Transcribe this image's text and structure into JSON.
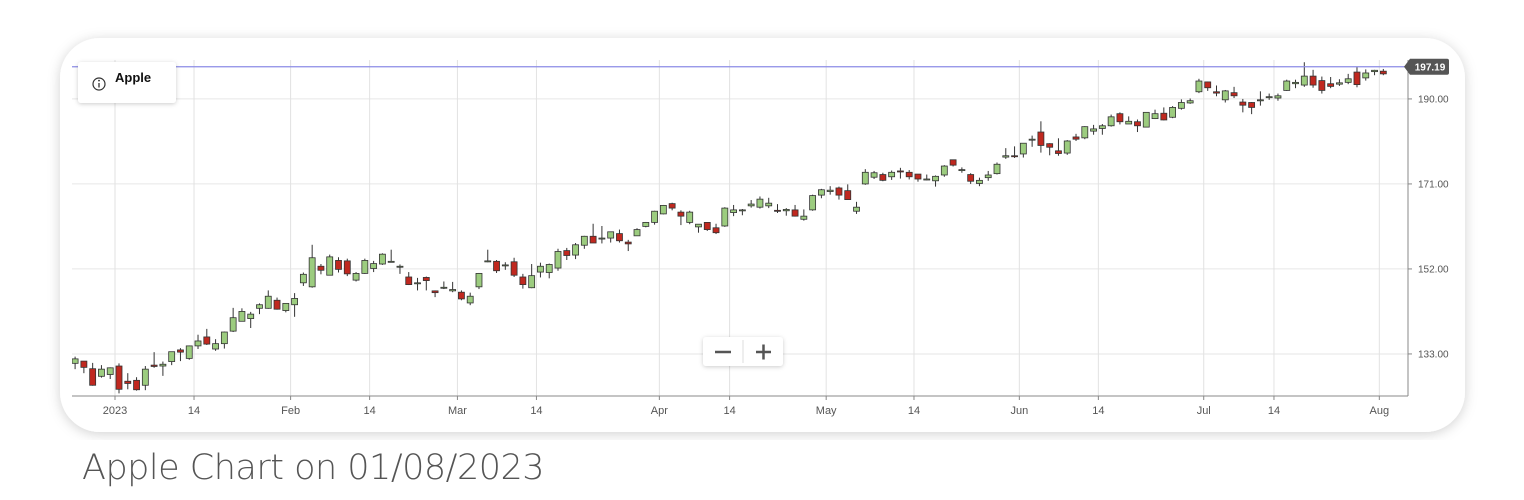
{
  "caption": "Apple Chart on 01/08/2023",
  "chart_data": {
    "type": "candlestick",
    "title": "Apple",
    "up_color": "#9ccc7f",
    "down_color": "#c0281f",
    "outline_color": "#333333",
    "last_price": 197.19,
    "last_price_color": "#8c8ce6",
    "grid": true,
    "ylim": [
      123.6,
      198.7
    ],
    "yticks": [
      {
        "value": 133,
        "label": "133.00"
      },
      {
        "value": 152,
        "label": "152.00"
      },
      {
        "value": 171,
        "label": "171.00"
      },
      {
        "value": 190,
        "label": "190.00"
      }
    ],
    "xticks": [
      {
        "value": "2023-01-01",
        "label": "2023"
      },
      {
        "value": "2023-01-14",
        "label": "14"
      },
      {
        "value": "2023-02-01",
        "label": "Feb"
      },
      {
        "value": "2023-02-14",
        "label": "14"
      },
      {
        "value": "2023-03-01",
        "label": "Mar"
      },
      {
        "value": "2023-03-14",
        "label": "14"
      },
      {
        "value": "2023-04-01",
        "label": "Apr"
      },
      {
        "value": "2023-04-14",
        "label": "14"
      },
      {
        "value": "2023-05-01",
        "label": "May"
      },
      {
        "value": "2023-05-14",
        "label": "14"
      },
      {
        "value": "2023-06-01",
        "label": "Jun"
      },
      {
        "value": "2023-06-14",
        "label": "14"
      },
      {
        "value": "2023-07-01",
        "label": "Jul"
      },
      {
        "value": "2023-07-14",
        "label": "14"
      },
      {
        "value": "2023-08-01",
        "label": "Aug"
      }
    ],
    "x": [
      "2022-12-22",
      "2022-12-23",
      "2022-12-27",
      "2022-12-28",
      "2022-12-29",
      "2022-12-30",
      "2023-01-03",
      "2023-01-04",
      "2023-01-05",
      "2023-01-06",
      "2023-01-09",
      "2023-01-10",
      "2023-01-11",
      "2023-01-12",
      "2023-01-13",
      "2023-01-17",
      "2023-01-18",
      "2023-01-19",
      "2023-01-20",
      "2023-01-23",
      "2023-01-24",
      "2023-01-25",
      "2023-01-26",
      "2023-01-27",
      "2023-01-30",
      "2023-01-31",
      "2023-02-01",
      "2023-02-02",
      "2023-02-03",
      "2023-02-06",
      "2023-02-07",
      "2023-02-08",
      "2023-02-09",
      "2023-02-10",
      "2023-02-13",
      "2023-02-14",
      "2023-02-15",
      "2023-02-16",
      "2023-02-17",
      "2023-02-21",
      "2023-02-22",
      "2023-02-23",
      "2023-02-24",
      "2023-02-27",
      "2023-02-28",
      "2023-03-01",
      "2023-03-02",
      "2023-03-03",
      "2023-03-06",
      "2023-03-07",
      "2023-03-08",
      "2023-03-09",
      "2023-03-10",
      "2023-03-13",
      "2023-03-14",
      "2023-03-15",
      "2023-03-16",
      "2023-03-17",
      "2023-03-20",
      "2023-03-21",
      "2023-03-22",
      "2023-03-23",
      "2023-03-24",
      "2023-03-27",
      "2023-03-28",
      "2023-03-29",
      "2023-03-30",
      "2023-03-31",
      "2023-04-03",
      "2023-04-04",
      "2023-04-05",
      "2023-04-06",
      "2023-04-10",
      "2023-04-11",
      "2023-04-12",
      "2023-04-13",
      "2023-04-14",
      "2023-04-17",
      "2023-04-18",
      "2023-04-19",
      "2023-04-20",
      "2023-04-21",
      "2023-04-24",
      "2023-04-25",
      "2023-04-26",
      "2023-04-27",
      "2023-04-28",
      "2023-05-01",
      "2023-05-02",
      "2023-05-03",
      "2023-05-04",
      "2023-05-05",
      "2023-05-08",
      "2023-05-09",
      "2023-05-10",
      "2023-05-11",
      "2023-05-12",
      "2023-05-15",
      "2023-05-16",
      "2023-05-17",
      "2023-05-18",
      "2023-05-19",
      "2023-05-22",
      "2023-05-23",
      "2023-05-24",
      "2023-05-25",
      "2023-05-26",
      "2023-05-30",
      "2023-05-31",
      "2023-06-01",
      "2023-06-02",
      "2023-06-05",
      "2023-06-06",
      "2023-06-07",
      "2023-06-08",
      "2023-06-09",
      "2023-06-12",
      "2023-06-13",
      "2023-06-14",
      "2023-06-15",
      "2023-06-16",
      "2023-06-20",
      "2023-06-21",
      "2023-06-22",
      "2023-06-23",
      "2023-06-26",
      "2023-06-27",
      "2023-06-28",
      "2023-06-29",
      "2023-06-30",
      "2023-07-03",
      "2023-07-05",
      "2023-07-06",
      "2023-07-07",
      "2023-07-10",
      "2023-07-11",
      "2023-07-12",
      "2023-07-13",
      "2023-07-14",
      "2023-07-17",
      "2023-07-18",
      "2023-07-19",
      "2023-07-20",
      "2023-07-21",
      "2023-07-24",
      "2023-07-25",
      "2023-07-26",
      "2023-07-27",
      "2023-07-28",
      "2023-07-31",
      "2023-08-01"
    ],
    "ohlc": [
      [
        134.4,
        134.6,
        130.0,
        132.2
      ],
      [
        130.9,
        132.4,
        129.6,
        131.9
      ],
      [
        131.4,
        131.4,
        128.7,
        130.0
      ],
      [
        129.7,
        131.0,
        125.9,
        126.0
      ],
      [
        128.0,
        130.5,
        127.7,
        129.6
      ],
      [
        128.4,
        130.0,
        127.4,
        129.9
      ],
      [
        130.3,
        130.9,
        124.2,
        125.1
      ],
      [
        126.9,
        128.7,
        125.1,
        126.4
      ],
      [
        127.1,
        127.8,
        124.8,
        125.0
      ],
      [
        126.0,
        130.3,
        124.9,
        129.6
      ],
      [
        130.5,
        133.4,
        129.9,
        130.2
      ],
      [
        130.3,
        131.3,
        128.1,
        130.7
      ],
      [
        131.3,
        133.5,
        130.5,
        133.5
      ],
      [
        133.9,
        134.3,
        131.4,
        133.4
      ],
      [
        132.0,
        134.9,
        131.7,
        134.8
      ],
      [
        134.8,
        137.3,
        134.1,
        135.9
      ],
      [
        136.8,
        138.6,
        135.0,
        135.2
      ],
      [
        134.1,
        136.3,
        133.7,
        135.3
      ],
      [
        135.3,
        138.0,
        134.2,
        137.9
      ],
      [
        138.1,
        143.3,
        137.9,
        141.1
      ],
      [
        140.3,
        143.2,
        140.3,
        142.5
      ],
      [
        140.9,
        142.4,
        138.8,
        141.9
      ],
      [
        143.2,
        144.3,
        141.9,
        144.0
      ],
      [
        143.2,
        147.2,
        143.1,
        145.9
      ],
      [
        145.0,
        145.6,
        142.9,
        143.0
      ],
      [
        142.7,
        144.3,
        142.3,
        144.3
      ],
      [
        144.0,
        146.6,
        141.3,
        145.4
      ],
      [
        148.9,
        151.2,
        148.2,
        150.8
      ],
      [
        148.0,
        157.4,
        147.8,
        154.5
      ],
      [
        152.6,
        153.1,
        150.8,
        151.7
      ],
      [
        150.6,
        155.2,
        150.6,
        154.7
      ],
      [
        153.9,
        154.6,
        151.2,
        151.9
      ],
      [
        153.8,
        154.3,
        150.4,
        150.9
      ],
      [
        149.5,
        151.3,
        149.2,
        151.0
      ],
      [
        151.0,
        154.3,
        150.9,
        153.9
      ],
      [
        152.1,
        153.8,
        151.3,
        153.2
      ],
      [
        153.1,
        155.5,
        152.9,
        155.3
      ],
      [
        153.5,
        156.3,
        153.5,
        153.7
      ],
      [
        152.4,
        153.0,
        150.9,
        152.6
      ],
      [
        150.2,
        151.3,
        148.4,
        148.5
      ],
      [
        148.9,
        150.0,
        147.2,
        148.9
      ],
      [
        150.1,
        150.3,
        147.2,
        149.4
      ],
      [
        147.1,
        147.2,
        145.7,
        146.7
      ],
      [
        147.7,
        149.2,
        147.5,
        147.9
      ],
      [
        147.1,
        149.1,
        146.8,
        147.4
      ],
      [
        146.8,
        147.2,
        145.0,
        145.3
      ],
      [
        144.4,
        146.7,
        143.9,
        145.9
      ],
      [
        148.0,
        151.1,
        147.5,
        151.0
      ],
      [
        153.8,
        156.3,
        153.5,
        153.8
      ],
      [
        153.7,
        154.0,
        151.1,
        151.6
      ],
      [
        152.8,
        153.5,
        151.8,
        152.9
      ],
      [
        153.6,
        154.5,
        150.2,
        150.6
      ],
      [
        150.2,
        150.9,
        147.6,
        148.5
      ],
      [
        147.8,
        153.1,
        147.7,
        150.5
      ],
      [
        151.3,
        153.4,
        150.1,
        152.6
      ],
      [
        151.2,
        153.2,
        149.9,
        153.0
      ],
      [
        152.2,
        156.5,
        151.6,
        155.9
      ],
      [
        156.1,
        156.7,
        154.0,
        155.0
      ],
      [
        155.1,
        157.8,
        154.2,
        157.4
      ],
      [
        157.3,
        159.4,
        156.5,
        159.3
      ],
      [
        159.3,
        162.1,
        157.8,
        157.8
      ],
      [
        158.8,
        161.6,
        157.7,
        158.9
      ],
      [
        158.9,
        160.3,
        157.9,
        160.3
      ],
      [
        159.9,
        160.8,
        157.9,
        158.3
      ],
      [
        158.0,
        158.5,
        156.0,
        157.6
      ],
      [
        159.4,
        161.1,
        159.4,
        160.8
      ],
      [
        161.5,
        162.5,
        161.3,
        162.4
      ],
      [
        162.4,
        165.0,
        161.9,
        164.9
      ],
      [
        164.3,
        166.3,
        164.2,
        166.2
      ],
      [
        166.6,
        166.8,
        165.1,
        165.6
      ],
      [
        164.7,
        165.1,
        161.8,
        163.8
      ],
      [
        162.4,
        165.0,
        162.0,
        164.7
      ],
      [
        161.4,
        162.0,
        160.1,
        162.0
      ],
      [
        162.4,
        162.4,
        160.5,
        160.8
      ],
      [
        161.2,
        162.1,
        159.8,
        160.1
      ],
      [
        161.6,
        165.8,
        161.4,
        165.6
      ],
      [
        164.6,
        166.3,
        163.8,
        165.2
      ],
      [
        165.1,
        165.4,
        164.0,
        165.2
      ],
      [
        166.1,
        167.4,
        165.7,
        166.5
      ],
      [
        165.8,
        168.2,
        165.5,
        167.6
      ],
      [
        166.1,
        167.9,
        165.6,
        166.7
      ],
      [
        165.1,
        166.5,
        164.5,
        165.0
      ],
      [
        165.0,
        165.6,
        163.9,
        165.3
      ],
      [
        165.2,
        166.3,
        163.7,
        163.8
      ],
      [
        163.1,
        165.3,
        162.8,
        163.8
      ],
      [
        165.2,
        168.6,
        165.0,
        168.4
      ],
      [
        168.5,
        169.9,
        167.8,
        169.7
      ],
      [
        169.3,
        170.5,
        168.6,
        169.6
      ],
      [
        170.1,
        170.4,
        167.5,
        168.5
      ],
      [
        169.5,
        170.9,
        167.5,
        167.5
      ],
      [
        164.9,
        167.0,
        164.3,
        165.8
      ],
      [
        171.0,
        174.3,
        170.8,
        173.6
      ],
      [
        172.5,
        173.9,
        172.1,
        173.5
      ],
      [
        173.1,
        173.5,
        171.6,
        171.8
      ],
      [
        172.6,
        174.0,
        171.9,
        173.6
      ],
      [
        173.9,
        174.6,
        172.2,
        173.8
      ],
      [
        173.6,
        174.1,
        172.0,
        172.6
      ],
      [
        173.2,
        173.2,
        171.5,
        172.1
      ],
      [
        172.0,
        173.1,
        171.8,
        172.1
      ],
      [
        171.7,
        172.9,
        170.4,
        172.7
      ],
      [
        173.0,
        175.2,
        172.6,
        175.0
      ],
      [
        176.4,
        176.4,
        174.9,
        175.2
      ],
      [
        174.0,
        174.7,
        173.5,
        174.2
      ],
      [
        173.1,
        173.4,
        171.0,
        171.6
      ],
      [
        171.1,
        172.4,
        170.5,
        171.8
      ],
      [
        172.4,
        173.9,
        171.7,
        173.0
      ],
      [
        173.3,
        175.8,
        173.1,
        175.4
      ],
      [
        177.0,
        179.0,
        176.6,
        177.3
      ],
      [
        177.3,
        179.4,
        176.8,
        177.2
      ],
      [
        177.7,
        180.1,
        176.9,
        180.1
      ],
      [
        181.0,
        181.8,
        179.3,
        181.0
      ],
      [
        182.6,
        185.0,
        178.0,
        179.6
      ],
      [
        180.0,
        180.1,
        177.4,
        179.2
      ],
      [
        178.4,
        181.2,
        177.3,
        177.8
      ],
      [
        177.9,
        180.8,
        177.5,
        180.6
      ],
      [
        181.5,
        182.2,
        180.6,
        181.0
      ],
      [
        181.3,
        183.9,
        181.0,
        183.8
      ],
      [
        182.8,
        184.2,
        182.0,
        183.3
      ],
      [
        183.4,
        184.4,
        182.0,
        184.0
      ],
      [
        184.0,
        186.5,
        183.8,
        186.0
      ],
      [
        186.7,
        187.0,
        184.3,
        184.9
      ],
      [
        184.4,
        186.1,
        184.4,
        185.0
      ],
      [
        184.9,
        185.4,
        182.6,
        184.0
      ],
      [
        183.7,
        187.0,
        183.7,
        187.0
      ],
      [
        185.6,
        187.6,
        185.5,
        186.7
      ],
      [
        186.8,
        188.1,
        185.2,
        185.3
      ],
      [
        185.9,
        188.4,
        185.7,
        188.1
      ],
      [
        187.9,
        189.9,
        187.6,
        189.2
      ],
      [
        189.1,
        190.1,
        188.9,
        189.6
      ],
      [
        191.6,
        194.5,
        191.3,
        194.0
      ],
      [
        193.8,
        193.9,
        191.8,
        192.5
      ],
      [
        191.6,
        193.0,
        190.6,
        191.3
      ],
      [
        189.8,
        192.0,
        189.2,
        191.8
      ],
      [
        191.4,
        192.7,
        190.2,
        190.7
      ],
      [
        189.3,
        190.0,
        187.0,
        188.6
      ],
      [
        189.2,
        189.3,
        186.6,
        188.1
      ],
      [
        189.7,
        191.7,
        188.5,
        189.8
      ],
      [
        190.5,
        191.2,
        189.8,
        190.5
      ],
      [
        190.2,
        191.2,
        189.6,
        190.7
      ],
      [
        191.9,
        194.3,
        191.8,
        194.0
      ],
      [
        193.4,
        194.3,
        192.4,
        193.7
      ],
      [
        193.1,
        198.2,
        192.7,
        195.1
      ],
      [
        195.1,
        196.5,
        192.5,
        193.1
      ],
      [
        194.1,
        195.0,
        191.2,
        191.9
      ],
      [
        193.4,
        194.9,
        192.4,
        192.8
      ],
      [
        193.3,
        194.4,
        192.9,
        193.6
      ],
      [
        193.7,
        195.6,
        193.3,
        194.5
      ],
      [
        196.0,
        197.2,
        192.6,
        193.2
      ],
      [
        194.7,
        196.6,
        194.1,
        195.8
      ],
      [
        196.1,
        196.5,
        195.3,
        196.4
      ],
      [
        196.2,
        196.7,
        195.3,
        195.6
      ]
    ]
  }
}
